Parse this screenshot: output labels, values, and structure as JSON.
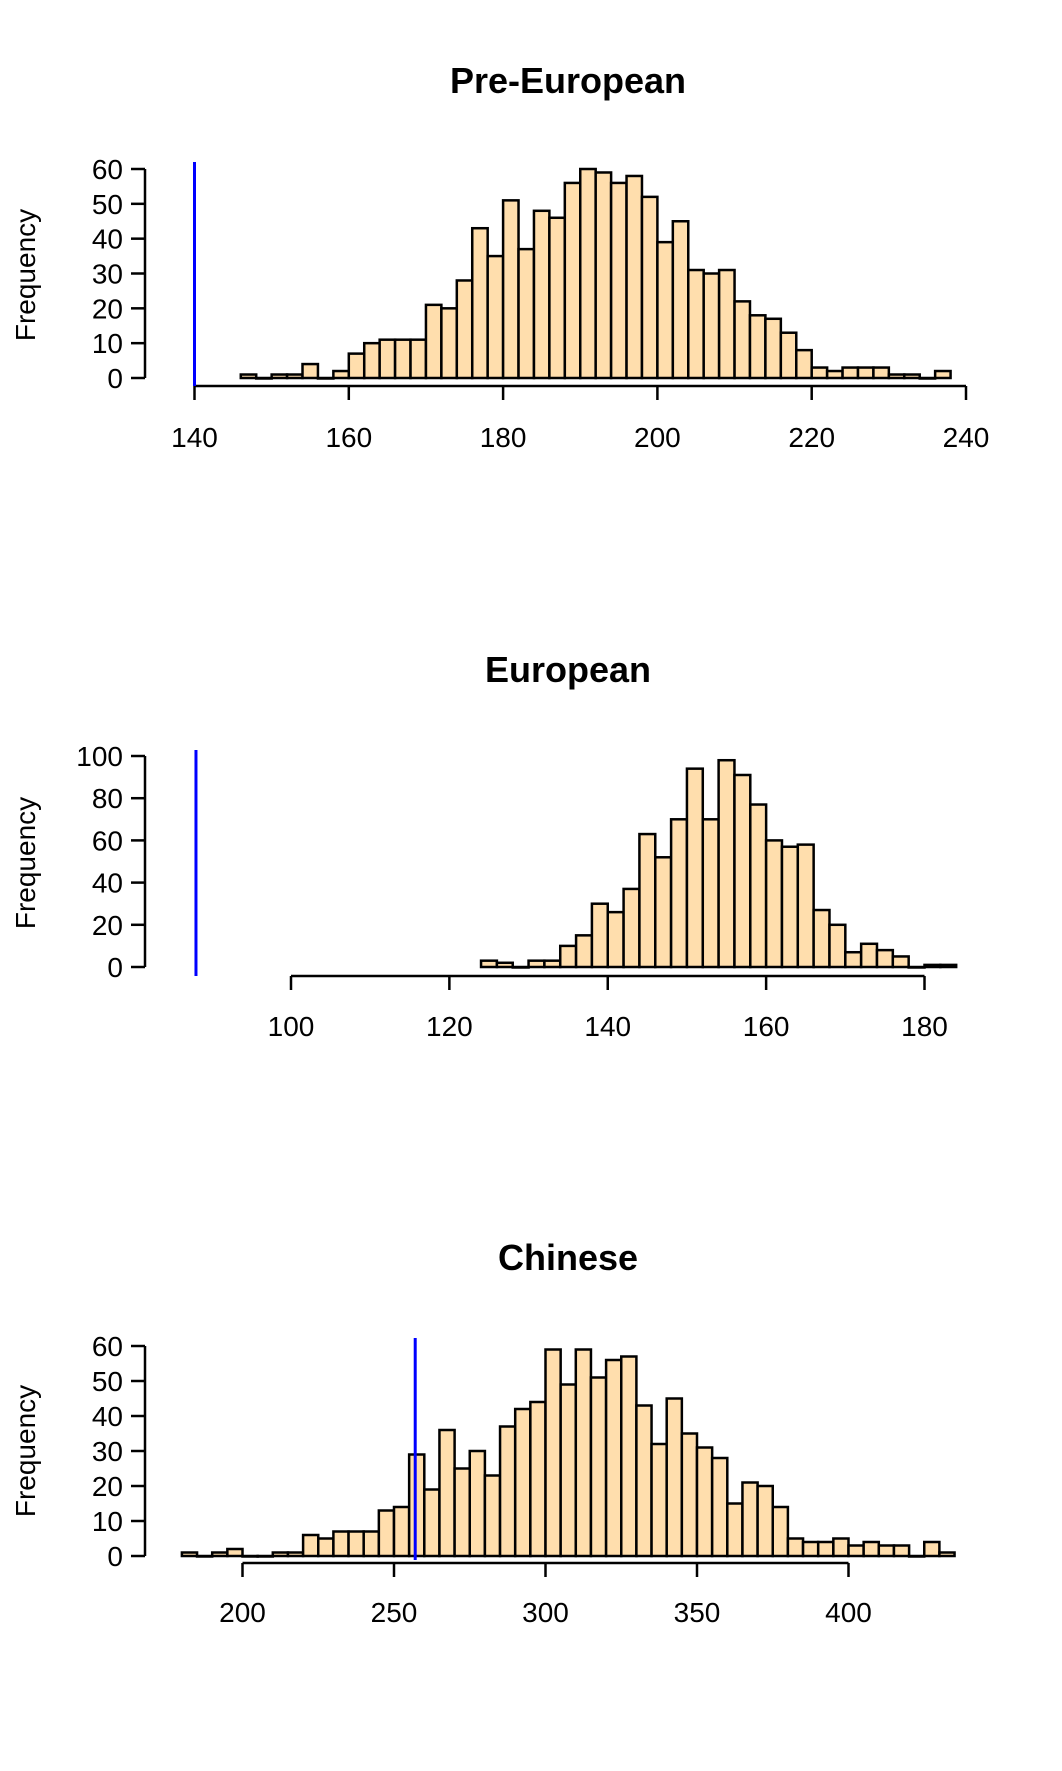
{
  "chart_data": [
    {
      "type": "histogram",
      "title": "Pre-European",
      "xlabel": "",
      "ylabel": "Frequency",
      "bin_width": 2,
      "xlim": [
        140,
        240
      ],
      "ylim": [
        0,
        60
      ],
      "xticks": [
        140,
        160,
        180,
        200,
        220,
        240
      ],
      "yticks": [
        0,
        10,
        20,
        30,
        40,
        50,
        60
      ],
      "bins_start": [
        146,
        148,
        150,
        152,
        154,
        156,
        158,
        160,
        162,
        164,
        166,
        168,
        170,
        172,
        174,
        176,
        178,
        180,
        182,
        184,
        186,
        188,
        190,
        192,
        194,
        196,
        198,
        200,
        202,
        204,
        206,
        208,
        210,
        212,
        214,
        216,
        218,
        220,
        222,
        224,
        226,
        228,
        230,
        232,
        234,
        236
      ],
      "counts": [
        1,
        0,
        1,
        1,
        4,
        0,
        2,
        7,
        10,
        11,
        11,
        11,
        21,
        20,
        28,
        43,
        35,
        51,
        37,
        48,
        46,
        56,
        60,
        59,
        56,
        58,
        52,
        39,
        45,
        31,
        30,
        31,
        22,
        18,
        17,
        13,
        8,
        3,
        2,
        3,
        3,
        3,
        1,
        1,
        0,
        2
      ],
      "reference_line": 140,
      "fill_color": "#FFDEAD",
      "line_color": "#0000FF"
    },
    {
      "type": "histogram",
      "title": "European",
      "xlabel": "",
      "ylabel": "Frequency",
      "bin_width": 2,
      "xlim": [
        100,
        180
      ],
      "ylim": [
        0,
        100
      ],
      "xticks": [
        100,
        120,
        140,
        160,
        180
      ],
      "yticks": [
        0,
        20,
        40,
        60,
        80,
        100
      ],
      "bins_start": [
        124,
        126,
        128,
        130,
        132,
        134,
        136,
        138,
        140,
        142,
        144,
        146,
        148,
        150,
        152,
        154,
        156,
        158,
        160,
        162,
        164,
        166,
        168,
        170,
        172,
        174,
        176,
        178,
        180,
        182
      ],
      "counts": [
        3,
        2,
        0,
        3,
        3,
        10,
        15,
        30,
        26,
        37,
        63,
        52,
        70,
        94,
        70,
        98,
        91,
        77,
        60,
        57,
        58,
        27,
        20,
        7,
        11,
        8,
        5,
        0,
        1,
        1
      ],
      "reference_line": 88,
      "fill_color": "#FFDEAD",
      "line_color": "#0000FF"
    },
    {
      "type": "histogram",
      "title": "Chinese",
      "xlabel": "",
      "ylabel": "Frequency",
      "bin_width": 5,
      "xlim": [
        200,
        400
      ],
      "ylim": [
        0,
        60
      ],
      "xticks": [
        200,
        250,
        300,
        350,
        400
      ],
      "yticks": [
        0,
        10,
        20,
        30,
        40,
        50,
        60
      ],
      "bins_start": [
        180,
        185,
        190,
        195,
        200,
        205,
        210,
        215,
        220,
        225,
        230,
        235,
        240,
        245,
        250,
        255,
        260,
        265,
        270,
        275,
        280,
        285,
        290,
        295,
        300,
        305,
        310,
        315,
        320,
        325,
        330,
        335,
        340,
        345,
        350,
        355,
        360,
        365,
        370,
        375,
        380,
        385,
        390,
        395,
        400,
        405,
        410,
        415,
        420,
        425,
        430
      ],
      "counts": [
        1,
        0,
        1,
        2,
        0,
        0,
        1,
        1,
        6,
        5,
        7,
        7,
        7,
        13,
        14,
        29,
        19,
        36,
        25,
        30,
        23,
        37,
        42,
        44,
        59,
        49,
        59,
        51,
        56,
        57,
        43,
        32,
        45,
        35,
        31,
        28,
        15,
        21,
        20,
        14,
        5,
        4,
        4,
        5,
        3,
        4,
        3,
        3,
        0,
        4,
        1
      ],
      "reference_line": 257,
      "fill_color": "#FFDEAD",
      "line_color": "#0000FF"
    }
  ]
}
